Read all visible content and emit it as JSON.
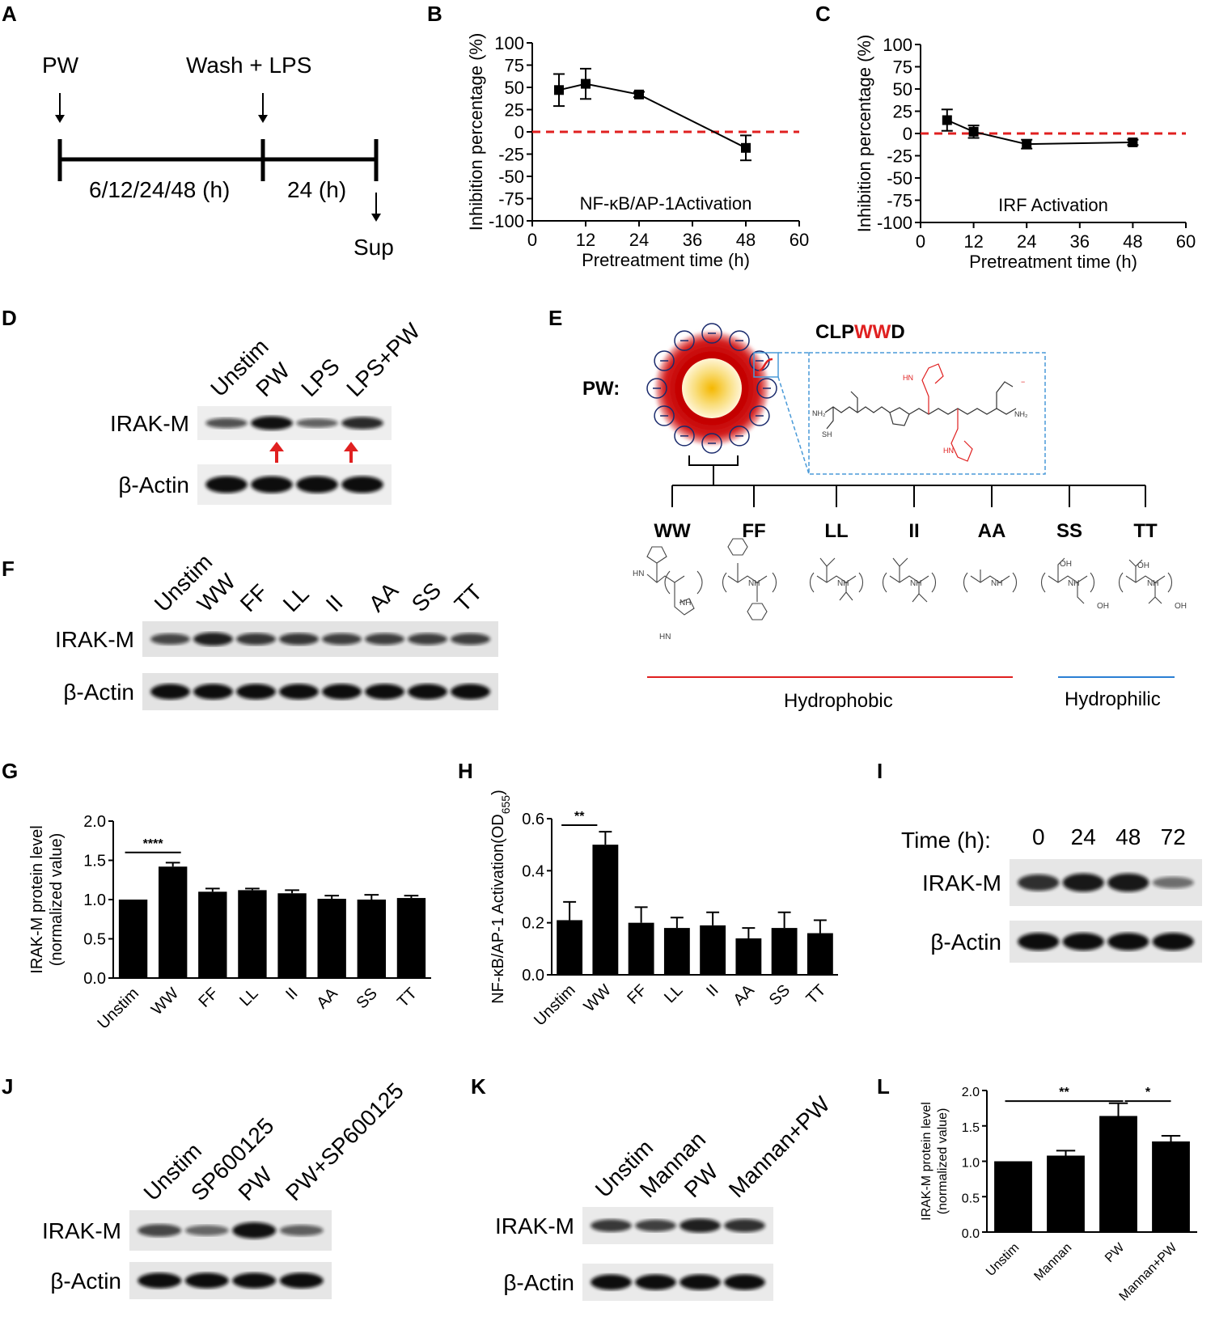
{
  "panels": {
    "A": {
      "label": "A",
      "pw": "PW",
      "wash": "Wash + LPS",
      "t1": "6/12/24/48 (h)",
      "t2": "24 (h)",
      "sup": "Sup"
    },
    "B": {
      "label": "B"
    },
    "C": {
      "label": "C"
    },
    "D": {
      "label": "D",
      "lanes": [
        "Unstim",
        "PW",
        "LPS",
        "LPS+PW"
      ],
      "row1": "IRAK-M",
      "row2": "β-Actin"
    },
    "E": {
      "label": "E",
      "pw": "PW:",
      "peptide_pre": "CLP",
      "peptide_red": "WW",
      "peptide_post": "D",
      "variants": [
        "WW",
        "FF",
        "LL",
        "II",
        "AA",
        "SS",
        "TT"
      ],
      "hydrophobic": "Hydrophobic",
      "hydrophilic": "Hydrophilic",
      "colors": {
        "hydrophobic": "#e02020",
        "hydrophilic": "#2a7fd4",
        "red": "#e02020",
        "dashed_box": "#4a9ad8"
      }
    },
    "F": {
      "label": "F",
      "lanes": [
        "Unstim",
        "WW",
        "FF",
        "LL",
        "II",
        "AA",
        "SS",
        "TT"
      ],
      "row1": "IRAK-M",
      "row2": "β-Actin"
    },
    "G": {
      "label": "G"
    },
    "H": {
      "label": "H"
    },
    "I": {
      "label": "I",
      "time_label": "Time (h):",
      "lanes": [
        "0",
        "24",
        "48",
        "72"
      ],
      "row1": "IRAK-M",
      "row2": "β-Actin"
    },
    "J": {
      "label": "J",
      "lanes": [
        "Unstim",
        "SP600125",
        "PW",
        "PW+SP600125"
      ],
      "row1": "IRAK-M",
      "row2": "β-Actin"
    },
    "K": {
      "label": "K",
      "lanes": [
        "Unstim",
        "Mannan",
        "PW",
        "Mannan+PW"
      ],
      "row1": "IRAK-M",
      "row2": "β-Actin"
    },
    "L": {
      "label": "L"
    }
  },
  "chart_data": [
    {
      "id": "B",
      "type": "line",
      "title": "NF-κB/AP-1Activation",
      "xlabel": "Pretreatment time (h)",
      "ylabel": "Inhibition percentage (%)",
      "x": [
        6,
        12,
        24,
        48
      ],
      "values": [
        47,
        54,
        42,
        -18
      ],
      "errors": [
        18,
        17,
        3,
        14
      ],
      "xlim": [
        0,
        60
      ],
      "ylim": [
        -100,
        100
      ],
      "xticks": [
        "0",
        "12",
        "24",
        "36",
        "48",
        "60"
      ],
      "yticks": [
        "100",
        "75",
        "50",
        "25",
        "0",
        "-25",
        "-50",
        "-75",
        "-100"
      ],
      "reference_line": 0
    },
    {
      "id": "C",
      "type": "line",
      "title": "IRF Activation",
      "xlabel": "Pretreatment time (h)",
      "ylabel": "Inhibition percentage (%)",
      "x": [
        6,
        12,
        24,
        48
      ],
      "values": [
        15,
        2,
        -12,
        -10
      ],
      "errors": [
        12,
        7,
        5,
        3
      ],
      "xlim": [
        0,
        60
      ],
      "ylim": [
        -100,
        100
      ],
      "xticks": [
        "0",
        "12",
        "24",
        "36",
        "48",
        "60"
      ],
      "yticks": [
        "100",
        "75",
        "50",
        "25",
        "0",
        "-25",
        "-50",
        "-75",
        "-100"
      ],
      "reference_line": 0
    },
    {
      "id": "G",
      "type": "bar",
      "ylabel": "IRAK-M protein level",
      "ylabel2": "(normalized value)",
      "categories": [
        "Unstim",
        "WW",
        "FF",
        "LL",
        "II",
        "AA",
        "SS",
        "TT"
      ],
      "values": [
        1.0,
        1.42,
        1.1,
        1.12,
        1.08,
        1.01,
        1.0,
        1.02
      ],
      "errors": [
        0,
        0.05,
        0.04,
        0.02,
        0.04,
        0.04,
        0.06,
        0.03
      ],
      "ylim": [
        0,
        2
      ],
      "yticks": [
        "0.0",
        "0.5",
        "1.0",
        "1.5",
        "2.0"
      ],
      "significance": "****"
    },
    {
      "id": "H",
      "type": "bar",
      "ylabel": "NF-κB/AP-1 Activation(OD",
      "ylabel_sub": "655",
      "ylabel_end": ")",
      "categories": [
        "Unstim",
        "WW",
        "FF",
        "LL",
        "II",
        "AA",
        "SS",
        "TT"
      ],
      "values": [
        0.21,
        0.5,
        0.2,
        0.18,
        0.19,
        0.14,
        0.18,
        0.16
      ],
      "errors": [
        0.07,
        0.05,
        0.06,
        0.04,
        0.05,
        0.04,
        0.06,
        0.05
      ],
      "ylim": [
        0,
        0.6
      ],
      "yticks": [
        "0.0",
        "0.2",
        "0.4",
        "0.6"
      ],
      "significance": "**"
    },
    {
      "id": "L",
      "type": "bar",
      "ylabel": "IRAK-M protein level",
      "ylabel2": "(normalized value)",
      "categories": [
        "Unstim",
        "Mannan",
        "PW",
        "Mannan+PW"
      ],
      "values": [
        1.0,
        1.08,
        1.64,
        1.28
      ],
      "errors": [
        0,
        0.07,
        0.18,
        0.08
      ],
      "ylim": [
        0,
        2
      ],
      "yticks": [
        "0.0",
        "0.5",
        "1.0",
        "1.5",
        "2.0"
      ],
      "significance": [
        "**",
        "*"
      ]
    }
  ],
  "blots": {
    "D": {
      "irak": [
        0.55,
        0.95,
        0.45,
        0.8
      ],
      "actin": [
        1,
        1,
        1,
        1
      ]
    },
    "F": {
      "irak": [
        0.6,
        0.85,
        0.7,
        0.7,
        0.65,
        0.65,
        0.65,
        0.65
      ],
      "actin": [
        1,
        1,
        1,
        1,
        1,
        1,
        1,
        1
      ]
    },
    "I": {
      "irak": [
        0.75,
        0.9,
        0.9,
        0.35
      ],
      "actin": [
        1,
        1,
        1,
        1
      ]
    },
    "J": {
      "irak": [
        0.6,
        0.4,
        0.95,
        0.45
      ],
      "actin": [
        1,
        1,
        1,
        1
      ]
    },
    "K": {
      "irak": [
        0.7,
        0.65,
        0.85,
        0.75
      ],
      "actin": [
        1,
        1,
        1,
        1
      ]
    }
  }
}
